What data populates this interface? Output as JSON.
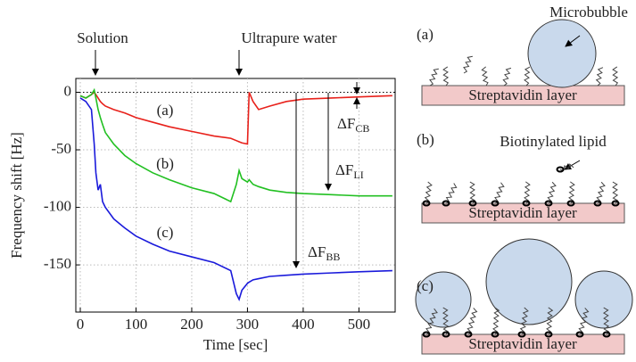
{
  "chart_data": {
    "type": "line",
    "x_label": "Time [sec]",
    "y_label": "Frequency shift [Hz]",
    "x": [
      0,
      10,
      20,
      25,
      28,
      32,
      36,
      40,
      45,
      60,
      80,
      100,
      130,
      160,
      200,
      240,
      270,
      280,
      285,
      290,
      300,
      303,
      310,
      320,
      340,
      370,
      400,
      450,
      500,
      560
    ],
    "series": [
      {
        "name": "(a)",
        "color": "#e8211b",
        "values": [
          -3,
          -5,
          -2,
          0,
          -2,
          -5,
          -8,
          -10,
          -12,
          -15,
          -18,
          -22,
          -26,
          -30,
          -34,
          -38,
          -40,
          -42,
          -43,
          -44,
          -45,
          0,
          -8,
          -15,
          -12,
          -8,
          -6,
          -5,
          -4,
          -3
        ]
      },
      {
        "name": "(b)",
        "color": "#22c022",
        "values": [
          -3,
          -5,
          -2,
          2,
          -5,
          -15,
          -22,
          -28,
          -35,
          -45,
          -55,
          -62,
          -70,
          -76,
          -83,
          -88,
          -95,
          -80,
          -68,
          -75,
          -78,
          -76,
          -80,
          -82,
          -85,
          -87,
          -88,
          -89,
          -90,
          -90
        ]
      },
      {
        "name": "(c)",
        "color": "#1a1adb",
        "values": [
          -5,
          -8,
          -15,
          -45,
          -70,
          -85,
          -80,
          -95,
          -100,
          -110,
          -118,
          -125,
          -132,
          -138,
          -143,
          -148,
          -155,
          -175,
          -180,
          -172,
          -166,
          -165,
          -163,
          -162,
          -160,
          -159,
          -158,
          -157,
          -156,
          -155
        ]
      }
    ],
    "xlim": [
      -8,
      565
    ],
    "ylim": [
      -191,
      12
    ],
    "xticks": [
      0,
      100,
      200,
      300,
      400,
      500
    ],
    "yticks": [
      0,
      -50,
      -100,
      -150
    ],
    "grid": true,
    "annotations": {
      "solution": "Solution",
      "water": "Ultrapure water",
      "cb": {
        "main": "ΔF",
        "sub": "CB"
      },
      "li": {
        "main": "ΔF",
        "sub": "LI"
      },
      "bb": {
        "main": "ΔF",
        "sub": "BB"
      }
    }
  },
  "diagrams": [
    {
      "label": "(a)",
      "layer": "Streptavidin layer",
      "callout": "Microbubble"
    },
    {
      "label": "(b)",
      "layer": "Streptavidin layer",
      "callout": "Biotinylated lipid"
    },
    {
      "label": "(c)",
      "layer": "Streptavidin layer"
    }
  ]
}
